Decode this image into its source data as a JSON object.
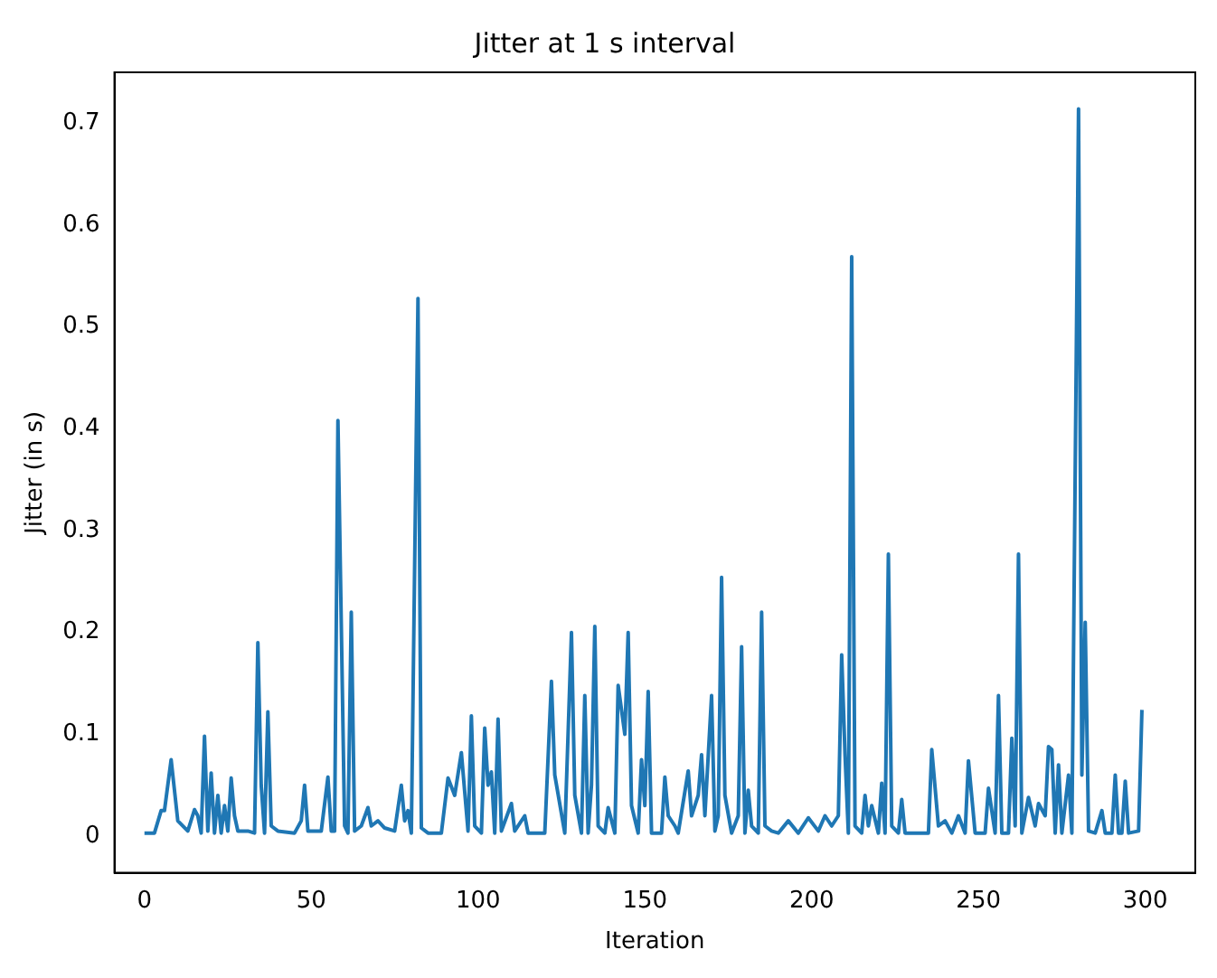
{
  "chart_data": {
    "type": "line",
    "title": "Jitter at 1 s interval",
    "xlabel": "Iteration",
    "ylabel": "Jitter (in s)",
    "x": [
      0,
      3,
      5,
      6,
      8,
      10,
      13,
      15,
      16,
      17,
      18,
      19,
      20,
      21,
      22,
      23,
      24,
      25,
      26,
      27,
      28,
      31,
      33,
      34,
      35,
      36,
      37,
      38,
      40,
      45,
      47,
      48,
      49,
      53,
      55,
      56,
      57,
      58,
      60,
      61,
      62,
      63,
      65,
      67,
      68,
      70,
      72,
      75,
      77,
      78,
      79,
      80,
      82,
      83,
      85,
      89,
      91,
      93,
      95,
      97,
      98,
      99,
      101,
      102,
      103,
      104,
      105,
      106,
      107,
      110,
      111,
      114,
      115,
      120,
      122,
      123,
      126,
      128,
      129,
      131,
      132,
      133,
      134,
      135,
      136,
      138,
      139,
      141,
      142,
      144,
      145,
      146,
      148,
      149,
      150,
      151,
      152,
      155,
      156,
      157,
      159,
      160,
      163,
      164,
      166,
      167,
      168,
      170,
      171,
      172,
      173,
      174,
      176,
      178,
      179,
      180,
      181,
      182,
      184,
      185,
      186,
      188,
      190,
      193,
      196,
      199,
      202,
      204,
      206,
      208,
      209,
      210,
      211,
      212,
      213,
      215,
      216,
      217,
      218,
      220,
      221,
      222,
      223,
      224,
      226,
      227,
      228,
      235,
      236,
      238,
      240,
      242,
      244,
      246,
      247,
      249,
      252,
      253,
      255,
      256,
      257,
      259,
      260,
      261,
      262,
      263,
      265,
      267,
      268,
      270,
      271,
      272,
      273,
      274,
      275,
      277,
      278,
      280,
      281,
      282,
      283,
      285,
      287,
      288,
      290,
      291,
      292,
      293,
      294,
      295,
      298,
      299
    ],
    "series": [
      {
        "color": "#1f77b4",
        "values": [
          0.003,
          0.003,
          0.025,
          0.025,
          0.075,
          0.015,
          0.005,
          0.026,
          0.02,
          0.003,
          0.098,
          0.005,
          0.062,
          0.003,
          0.04,
          0.003,
          0.03,
          0.005,
          0.057,
          0.02,
          0.005,
          0.005,
          0.003,
          0.19,
          0.05,
          0.003,
          0.122,
          0.01,
          0.005,
          0.003,
          0.015,
          0.05,
          0.005,
          0.005,
          0.058,
          0.005,
          0.005,
          0.408,
          0.01,
          0.003,
          0.22,
          0.005,
          0.01,
          0.028,
          0.01,
          0.015,
          0.008,
          0.005,
          0.05,
          0.015,
          0.025,
          0.003,
          0.528,
          0.008,
          0.003,
          0.003,
          0.057,
          0.04,
          0.082,
          0.005,
          0.118,
          0.01,
          0.003,
          0.106,
          0.05,
          0.063,
          0.003,
          0.115,
          0.005,
          0.032,
          0.005,
          0.02,
          0.003,
          0.003,
          0.152,
          0.06,
          0.003,
          0.2,
          0.04,
          0.003,
          0.138,
          0.003,
          0.05,
          0.206,
          0.01,
          0.003,
          0.028,
          0.003,
          0.148,
          0.1,
          0.2,
          0.03,
          0.003,
          0.075,
          0.03,
          0.142,
          0.003,
          0.003,
          0.058,
          0.02,
          0.01,
          0.003,
          0.064,
          0.02,
          0.04,
          0.08,
          0.02,
          0.138,
          0.005,
          0.02,
          0.254,
          0.04,
          0.003,
          0.02,
          0.186,
          0.003,
          0.045,
          0.01,
          0.003,
          0.22,
          0.01,
          0.005,
          0.003,
          0.015,
          0.003,
          0.018,
          0.005,
          0.02,
          0.01,
          0.02,
          0.178,
          0.08,
          0.003,
          0.569,
          0.01,
          0.003,
          0.04,
          0.01,
          0.03,
          0.003,
          0.052,
          0.003,
          0.277,
          0.01,
          0.003,
          0.036,
          0.003,
          0.003,
          0.085,
          0.01,
          0.015,
          0.003,
          0.02,
          0.003,
          0.074,
          0.003,
          0.003,
          0.047,
          0.003,
          0.138,
          0.003,
          0.003,
          0.096,
          0.01,
          0.277,
          0.003,
          0.038,
          0.01,
          0.032,
          0.02,
          0.088,
          0.085,
          0.003,
          0.07,
          0.003,
          0.06,
          0.003,
          0.714,
          0.06,
          0.21,
          0.005,
          0.003,
          0.025,
          0.003,
          0.003,
          0.06,
          0.003,
          0.003,
          0.054,
          0.003,
          0.005,
          0.124
        ]
      }
    ],
    "xlim": [
      -9,
      315
    ],
    "ylim": [
      -0.036,
      0.75
    ],
    "xticks": [
      0,
      50,
      100,
      150,
      200,
      250,
      300
    ],
    "yticks": [
      0,
      0.1,
      0.2,
      0.3,
      0.4,
      0.5,
      0.6,
      0.7
    ],
    "grid": false,
    "legend": false,
    "marker": "none",
    "line_style": "solid"
  }
}
